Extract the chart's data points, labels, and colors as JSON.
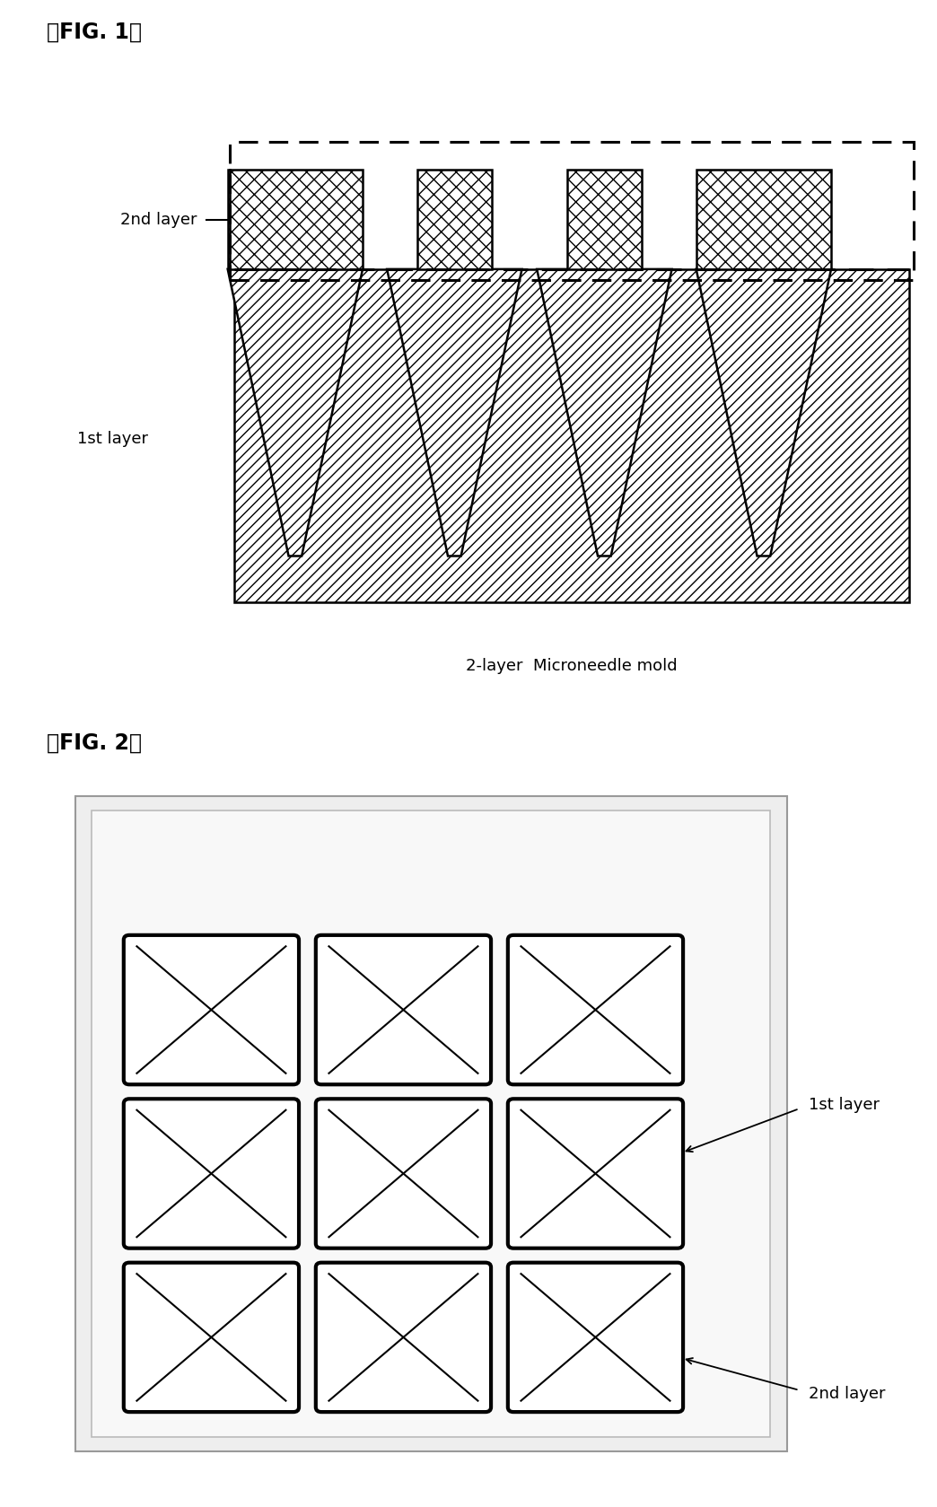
{
  "fig1_title": "』FIG. 1』",
  "fig2_title": "』FIG. 2』",
  "fig1_caption": "2-layer  Microneedle mold",
  "fig1_label_2nd": "2nd layer",
  "fig1_label_1st": "1st layer",
  "fig2_label_1st": "1st layer",
  "fig2_label_2nd": "2nd layer",
  "bg_color": "#ffffff"
}
